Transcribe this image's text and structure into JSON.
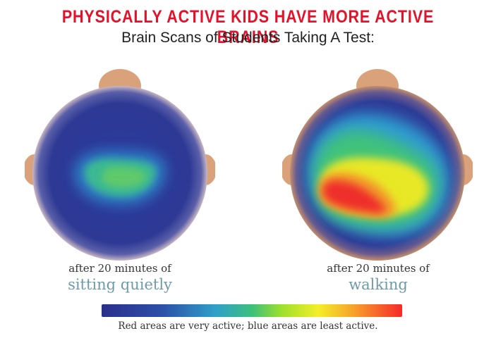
{
  "title": "PHYSICALLY ACTIVE KIDS HAVE MORE ACTIVE BRAINS",
  "subtitle": "Brain Scans of Students Taking A Test:",
  "scans": [
    {
      "caption_line1": "after 20 minutes of",
      "caption_line2": "sitting quietly"
    },
    {
      "caption_line1": "after 20 minutes of",
      "caption_line2": "walking"
    }
  ],
  "legend": "Red areas are very active; blue areas are least active.",
  "colors": {
    "title_red": "#e3122b",
    "caption_teal": "#6f9aa8",
    "skin": "#d9a27a",
    "scale_low": "#2b2f8c",
    "scale_high": "#f52a2a"
  }
}
